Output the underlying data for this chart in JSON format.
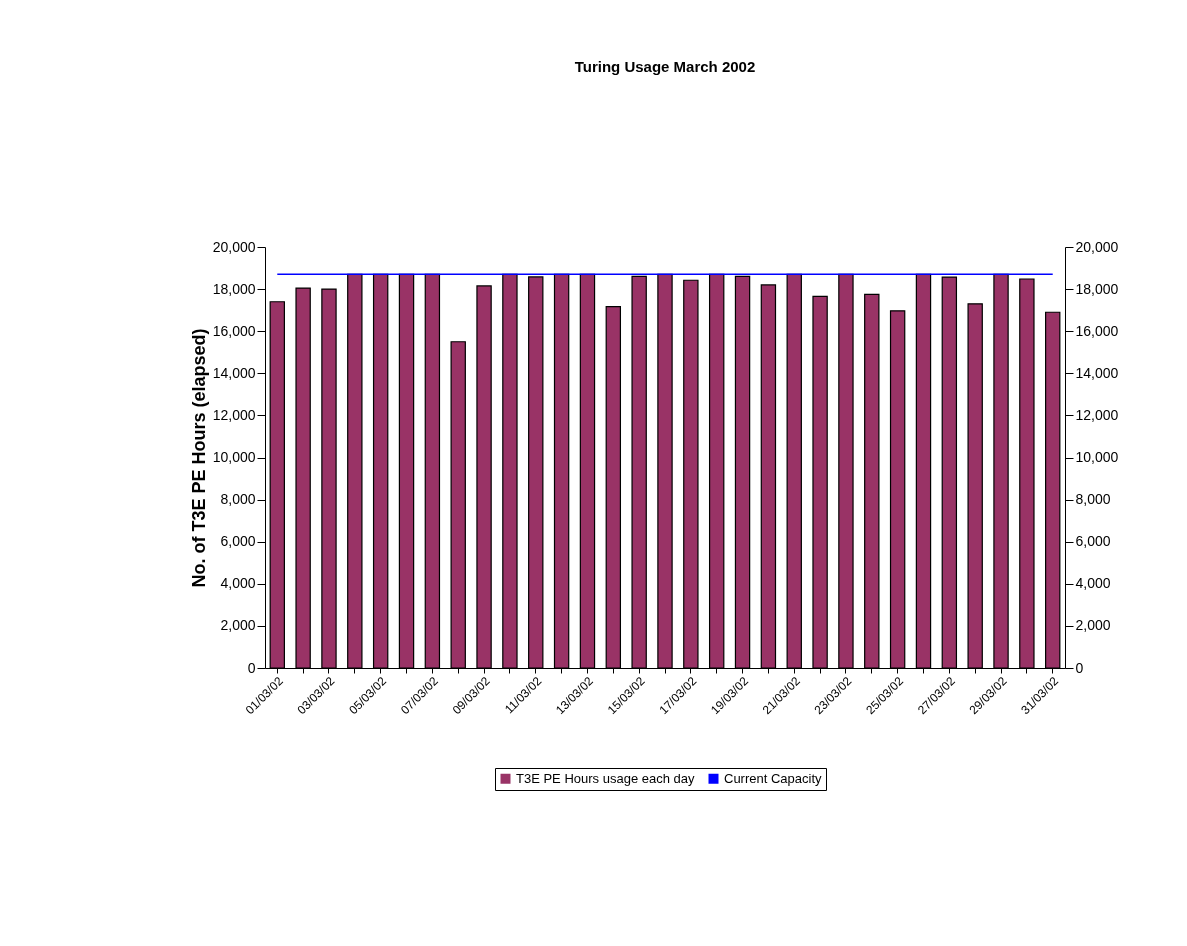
{
  "chart_data": {
    "type": "bar",
    "title": "Turing Usage March 2002",
    "ylabel": "No. of T3E PE Hours (elapsed)",
    "categories": [
      "01/03/02",
      null,
      "03/03/02",
      null,
      "05/03/02",
      null,
      "07/03/02",
      null,
      "09/03/02",
      null,
      "11/03/02",
      null,
      "13/03/02",
      null,
      "15/03/02",
      null,
      "17/03/02",
      null,
      "19/03/02",
      null,
      "21/03/02",
      null,
      "23/03/02",
      null,
      "25/03/02",
      null,
      "27/03/02",
      null,
      "29/03/02",
      null,
      "31/03/02"
    ],
    "series": [
      {
        "name": "T3E PE Hours usage each day",
        "color": "#993366",
        "values": [
          17400,
          18050,
          18000,
          18700,
          18700,
          18700,
          18700,
          15500,
          18150,
          18700,
          18580,
          18700,
          18700,
          17170,
          18600,
          18700,
          18420,
          18700,
          18600,
          18200,
          18700,
          17650,
          18700,
          17750,
          16970,
          18700,
          18570,
          17300,
          18700,
          18480,
          16900
        ]
      },
      {
        "name": "Current Capacity",
        "type": "line",
        "axis": "y2",
        "color": "#0000ff",
        "values": [
          18700,
          18700,
          18700,
          18700,
          18700,
          18700,
          18700,
          18700,
          18700,
          18700,
          18700,
          18700,
          18700,
          18700,
          18700,
          18700,
          18700,
          18700,
          18700,
          18700,
          18700,
          18700,
          18700,
          18700,
          18700,
          18700,
          18700,
          18700,
          18700,
          18700,
          18700
        ]
      }
    ],
    "ylim": [
      0,
      20000
    ],
    "yticks": [
      {
        "value": 0,
        "label": "0"
      },
      {
        "value": 2000,
        "label": "2,000"
      },
      {
        "value": 4000,
        "label": "4,000"
      },
      {
        "value": 6000,
        "label": "6,000"
      },
      {
        "value": 8000,
        "label": "8,000"
      },
      {
        "value": 10000,
        "label": "10,000"
      },
      {
        "value": 12000,
        "label": "12,000"
      },
      {
        "value": 14000,
        "label": "14,000"
      },
      {
        "value": 16000,
        "label": "16,000"
      },
      {
        "value": 18000,
        "label": "18,000"
      },
      {
        "value": 20000,
        "label": "20,000"
      }
    ],
    "y2lim": [
      0,
      20000
    ],
    "y2ticks": [
      {
        "value": 0,
        "label": "0"
      },
      {
        "value": 2000,
        "label": "2,000"
      },
      {
        "value": 4000,
        "label": "4,000"
      },
      {
        "value": 6000,
        "label": "6,000"
      },
      {
        "value": 8000,
        "label": "8,000"
      },
      {
        "value": 10000,
        "label": "10,000"
      },
      {
        "value": 12000,
        "label": "12,000"
      },
      {
        "value": 14000,
        "label": "14,000"
      },
      {
        "value": 16000,
        "label": "16,000"
      },
      {
        "value": 18000,
        "label": "18,000"
      },
      {
        "value": 20000,
        "label": "20,000"
      }
    ],
    "grid": false,
    "legend": "bottom"
  }
}
